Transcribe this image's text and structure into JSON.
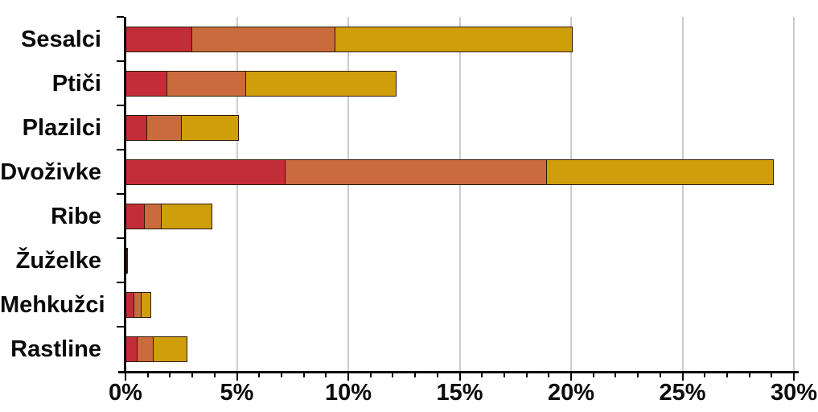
{
  "chart_data": {
    "type": "bar",
    "orientation": "horizontal",
    "stacked": true,
    "title": "",
    "xlabel": "",
    "ylabel": "",
    "categories": [
      "Sesalci",
      "Ptiči",
      "Plazilci",
      "Dvoživke",
      "Ribe",
      "Žuželke",
      "Mehkužci",
      "Rastline"
    ],
    "series": [
      {
        "name": "red-segment",
        "color": "#c32d37",
        "values": [
          3.0,
          1.9,
          1.0,
          7.2,
          0.9,
          0.07,
          0.4,
          0.55
        ]
      },
      {
        "name": "orange-segment",
        "color": "#c96b3c",
        "values": [
          6.5,
          3.6,
          1.6,
          11.8,
          0.8,
          0.06,
          0.4,
          0.8
        ]
      },
      {
        "name": "yellow-segment",
        "color": "#cf9e0b",
        "values": [
          10.7,
          6.8,
          2.6,
          10.2,
          2.3,
          0.07,
          0.45,
          1.55
        ]
      }
    ],
    "totals": [
      20.2,
      12.3,
      5.2,
      29.2,
      4.0,
      0.2,
      1.25,
      2.9
    ],
    "xlim": [
      0,
      30
    ],
    "x_tick_labels": [
      "0%",
      "5%",
      "10%",
      "15%",
      "20%",
      "25%",
      "30%"
    ],
    "x_major_tick_step_pct": 5,
    "x_minor_tick_step_pct": 1,
    "grid": "vertical-major-only",
    "legend": "none",
    "colors": {
      "bar_border": "#2e1a07",
      "gridline": "#cccccc",
      "axis": "#000000",
      "text": "#0a0a0a",
      "background": "#ffffff"
    }
  }
}
